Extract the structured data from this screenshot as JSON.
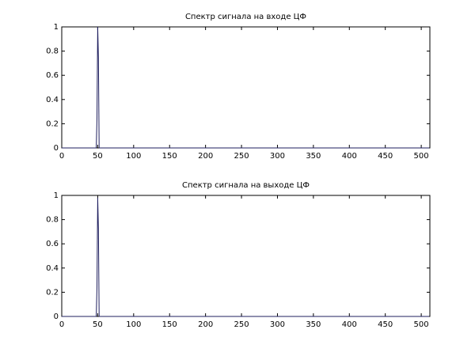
{
  "chart_data": [
    {
      "type": "line",
      "title": "Спектр сигнала на входе ЦФ",
      "x": [
        0,
        48,
        49,
        50,
        51,
        52,
        511
      ],
      "values": [
        0,
        0,
        0.25,
        1,
        0.75,
        0,
        0
      ],
      "color": "#1f1f5f",
      "xlim": [
        0,
        512
      ],
      "xticks": [
        0,
        50,
        100,
        150,
        200,
        250,
        300,
        350,
        400,
        450,
        500
      ],
      "ylim": [
        0,
        1
      ],
      "yticks": [
        0,
        0.2,
        0.4,
        0.6,
        0.8,
        1
      ]
    },
    {
      "type": "line",
      "title": "Спектр сигнала на выходе ЦФ",
      "x": [
        0,
        48,
        49,
        50,
        51,
        52,
        511
      ],
      "values": [
        0,
        0,
        0.25,
        0.98,
        0.73,
        0,
        0
      ],
      "color": "#1f1f5f",
      "xlim": [
        0,
        512
      ],
      "xticks": [
        0,
        50,
        100,
        150,
        200,
        250,
        300,
        350,
        400,
        450,
        500
      ],
      "ylim": [
        0,
        1
      ],
      "yticks": [
        0,
        0.2,
        0.4,
        0.6,
        0.8,
        1
      ]
    }
  ]
}
